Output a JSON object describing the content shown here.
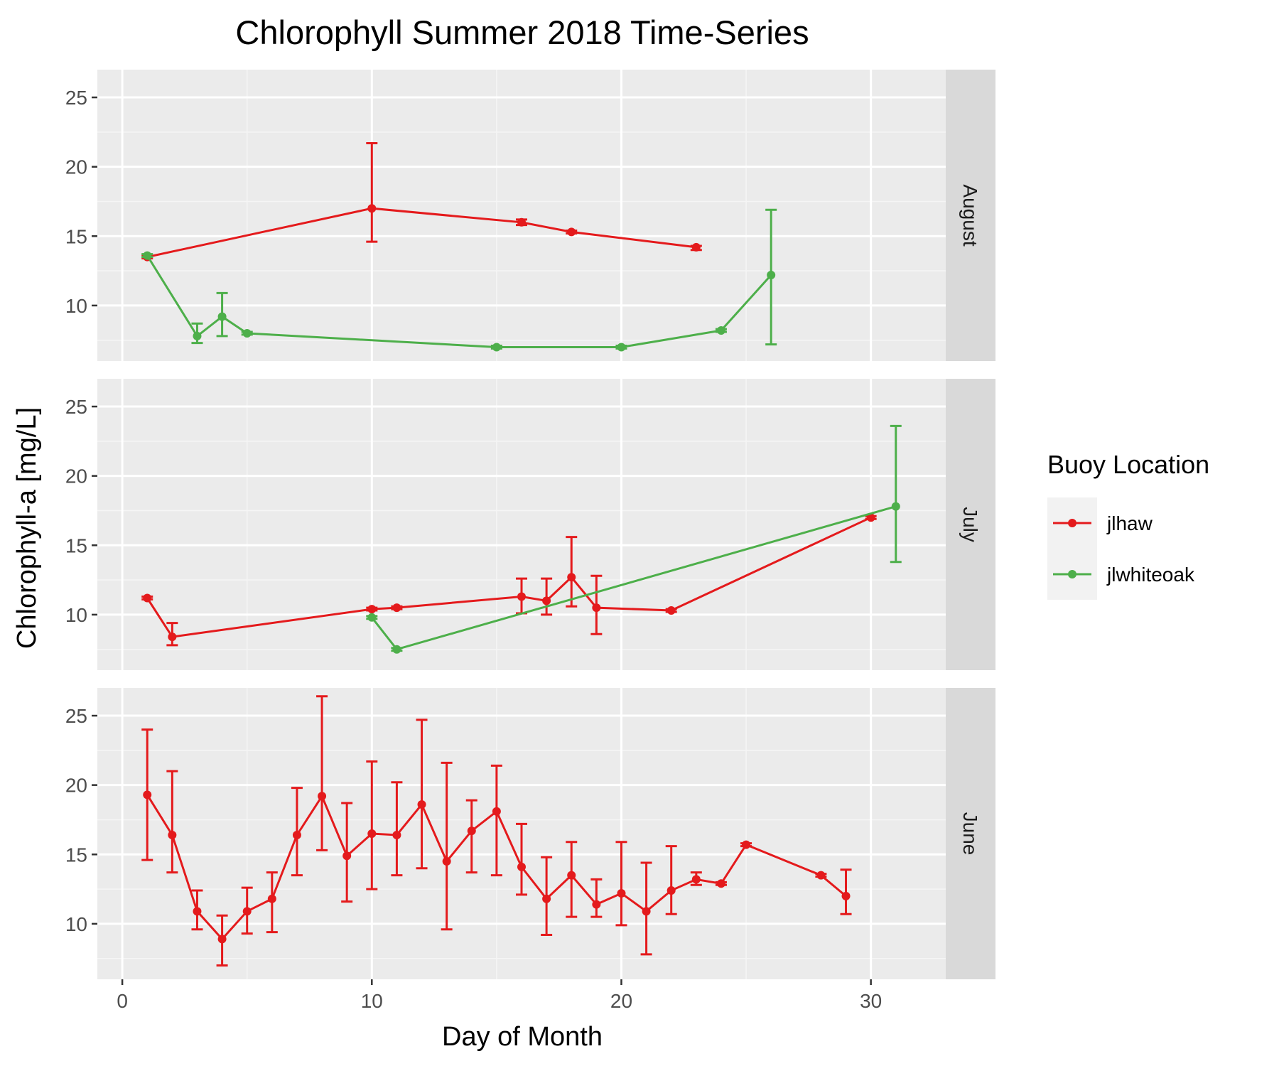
{
  "chart_data": {
    "type": "line",
    "title": "Chlorophyll Summer 2018 Time-Series",
    "xlabel": "Day of Month",
    "ylabel": "Chlorophyll-a [mg/L]",
    "xlim": [
      -1,
      33
    ],
    "ylim": [
      6,
      27
    ],
    "x_ticks": [
      0,
      10,
      20,
      30
    ],
    "y_ticks": [
      10,
      15,
      20,
      25
    ],
    "facet_layout": "rows",
    "grid": true,
    "legend": {
      "title": "Buoy Location",
      "position": "right",
      "entries": [
        {
          "name": "jlhaw",
          "color": "#e41a1c"
        },
        {
          "name": "jlwhiteoak",
          "color": "#4daf4a"
        }
      ]
    },
    "facets": [
      {
        "label": "August",
        "series": [
          {
            "name": "jlhaw",
            "color": "#e41a1c",
            "points": [
              {
                "x": 1,
                "y": 13.5,
                "ymin": 13.4,
                "ymax": 13.6
              },
              {
                "x": 10,
                "y": 17.0,
                "ymin": 14.6,
                "ymax": 21.7
              },
              {
                "x": 16,
                "y": 16.0,
                "ymin": 15.8,
                "ymax": 16.2
              },
              {
                "x": 18,
                "y": 15.3,
                "ymin": 15.2,
                "ymax": 15.4
              },
              {
                "x": 23,
                "y": 14.2,
                "ymin": 14.0,
                "ymax": 14.3
              }
            ]
          },
          {
            "name": "jlwhiteoak",
            "color": "#4daf4a",
            "points": [
              {
                "x": 1,
                "y": 13.6,
                "ymin": 13.5,
                "ymax": 13.7
              },
              {
                "x": 3,
                "y": 7.8,
                "ymin": 7.3,
                "ymax": 8.7
              },
              {
                "x": 4,
                "y": 9.2,
                "ymin": 7.8,
                "ymax": 10.9
              },
              {
                "x": 5,
                "y": 8.0,
                "ymin": 7.9,
                "ymax": 8.1
              },
              {
                "x": 15,
                "y": 7.0,
                "ymin": 6.9,
                "ymax": 7.1
              },
              {
                "x": 20,
                "y": 7.0,
                "ymin": 6.9,
                "ymax": 7.1
              },
              {
                "x": 24,
                "y": 8.2,
                "ymin": 8.1,
                "ymax": 8.3
              },
              {
                "x": 26,
                "y": 12.2,
                "ymin": 7.2,
                "ymax": 16.9
              }
            ]
          }
        ]
      },
      {
        "label": "July",
        "series": [
          {
            "name": "jlhaw",
            "color": "#e41a1c",
            "points": [
              {
                "x": 1,
                "y": 11.2,
                "ymin": 11.1,
                "ymax": 11.3
              },
              {
                "x": 2,
                "y": 8.4,
                "ymin": 7.8,
                "ymax": 9.4
              },
              {
                "x": 10,
                "y": 10.4,
                "ymin": 10.3,
                "ymax": 10.5
              },
              {
                "x": 11,
                "y": 10.5,
                "ymin": 10.4,
                "ymax": 10.6
              },
              {
                "x": 16,
                "y": 11.3,
                "ymin": 10.1,
                "ymax": 12.6
              },
              {
                "x": 17,
                "y": 11.0,
                "ymin": 10.0,
                "ymax": 12.6
              },
              {
                "x": 18,
                "y": 12.7,
                "ymin": 10.6,
                "ymax": 15.6
              },
              {
                "x": 19,
                "y": 10.5,
                "ymin": 8.6,
                "ymax": 12.8
              },
              {
                "x": 22,
                "y": 10.3,
                "ymin": 10.2,
                "ymax": 10.4
              },
              {
                "x": 30,
                "y": 17.0,
                "ymin": 16.9,
                "ymax": 17.1
              }
            ]
          },
          {
            "name": "jlwhiteoak",
            "color": "#4daf4a",
            "points": [
              {
                "x": 10,
                "y": 9.8,
                "ymin": 9.7,
                "ymax": 9.9
              },
              {
                "x": 11,
                "y": 7.5,
                "ymin": 7.4,
                "ymax": 7.6
              },
              {
                "x": 31,
                "y": 17.8,
                "ymin": 13.8,
                "ymax": 23.6
              }
            ]
          }
        ]
      },
      {
        "label": "June",
        "series": [
          {
            "name": "jlhaw",
            "color": "#e41a1c",
            "points": [
              {
                "x": 1,
                "y": 19.3,
                "ymin": 14.6,
                "ymax": 24.0
              },
              {
                "x": 2,
                "y": 16.4,
                "ymin": 13.7,
                "ymax": 21.0
              },
              {
                "x": 3,
                "y": 10.9,
                "ymin": 9.6,
                "ymax": 12.4
              },
              {
                "x": 4,
                "y": 8.9,
                "ymin": 7.0,
                "ymax": 10.6
              },
              {
                "x": 5,
                "y": 10.9,
                "ymin": 9.3,
                "ymax": 12.6
              },
              {
                "x": 6,
                "y": 11.8,
                "ymin": 9.4,
                "ymax": 13.7
              },
              {
                "x": 7,
                "y": 16.4,
                "ymin": 13.5,
                "ymax": 19.8
              },
              {
                "x": 8,
                "y": 19.2,
                "ymin": 15.3,
                "ymax": 26.4
              },
              {
                "x": 9,
                "y": 14.9,
                "ymin": 11.6,
                "ymax": 18.7
              },
              {
                "x": 10,
                "y": 16.5,
                "ymin": 12.5,
                "ymax": 21.7
              },
              {
                "x": 11,
                "y": 16.4,
                "ymin": 13.5,
                "ymax": 20.2
              },
              {
                "x": 12,
                "y": 18.6,
                "ymin": 14.0,
                "ymax": 24.7
              },
              {
                "x": 13,
                "y": 14.5,
                "ymin": 9.6,
                "ymax": 21.6
              },
              {
                "x": 14,
                "y": 16.7,
                "ymin": 13.7,
                "ymax": 18.9
              },
              {
                "x": 15,
                "y": 18.1,
                "ymin": 13.5,
                "ymax": 21.4
              },
              {
                "x": 16,
                "y": 14.1,
                "ymin": 12.1,
                "ymax": 17.2
              },
              {
                "x": 17,
                "y": 11.8,
                "ymin": 9.2,
                "ymax": 14.8
              },
              {
                "x": 18,
                "y": 13.5,
                "ymin": 10.5,
                "ymax": 15.9
              },
              {
                "x": 19,
                "y": 11.4,
                "ymin": 10.5,
                "ymax": 13.2
              },
              {
                "x": 20,
                "y": 12.2,
                "ymin": 9.9,
                "ymax": 15.9
              },
              {
                "x": 21,
                "y": 10.9,
                "ymin": 7.8,
                "ymax": 14.4
              },
              {
                "x": 22,
                "y": 12.4,
                "ymin": 10.7,
                "ymax": 15.6
              },
              {
                "x": 23,
                "y": 13.2,
                "ymin": 12.8,
                "ymax": 13.7
              },
              {
                "x": 24,
                "y": 12.9,
                "ymin": 12.8,
                "ymax": 13.0
              },
              {
                "x": 25,
                "y": 15.7,
                "ymin": 15.6,
                "ymax": 15.8
              },
              {
                "x": 28,
                "y": 13.5,
                "ymin": 13.4,
                "ymax": 13.6
              },
              {
                "x": 29,
                "y": 12.0,
                "ymin": 10.7,
                "ymax": 13.9
              }
            ]
          }
        ]
      }
    ]
  }
}
